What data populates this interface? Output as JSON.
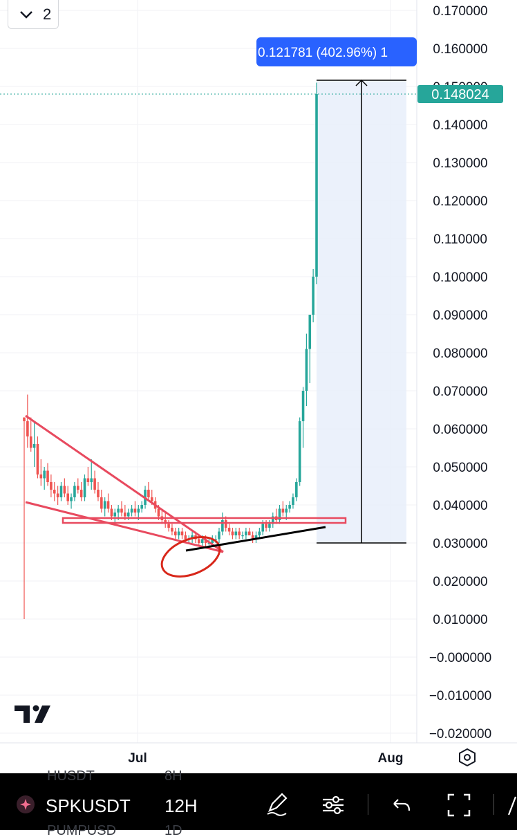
{
  "toolbar": {
    "indicator_count": "2"
  },
  "symbol_bar": {
    "symbol": "SPKUSDT",
    "interval": "12H",
    "ghost_top_left": "HUSDT",
    "ghost_top_right": "8H",
    "ghost_bottom_left": "PUMPUSD",
    "ghost_bottom_right": "1D"
  },
  "chart_data": {
    "type": "candlestick",
    "symbol": "SPKUSDT",
    "interval": "12H",
    "price_scale": {
      "ticks": [
        "0.170000",
        "0.160000",
        "0.150000",
        "0.140000",
        "0.130000",
        "0.120000",
        "0.110000",
        "0.100000",
        "0.090000",
        "0.080000",
        "0.070000",
        "0.060000",
        "0.050000",
        "0.040000",
        "0.030000",
        "0.020000",
        "0.010000",
        "−0.000000",
        "−0.010000",
        "−0.020000"
      ],
      "ylim": [
        -0.02,
        0.17
      ]
    },
    "time_scale": {
      "ticks": [
        "Jul",
        "Aug"
      ]
    },
    "last_price": "0.148024",
    "measure_label": "0.121781 (402.96%) 1",
    "up_color": "#26a69a",
    "down_color": "#ef5350",
    "candles": [
      [
        0.063,
        0.063,
        0.01,
        0.062
      ],
      [
        0.062,
        0.069,
        0.055,
        0.058
      ],
      [
        0.058,
        0.063,
        0.054,
        0.055
      ],
      [
        0.055,
        0.062,
        0.05,
        0.056
      ],
      [
        0.056,
        0.058,
        0.047,
        0.048
      ],
      [
        0.048,
        0.052,
        0.045,
        0.047
      ],
      [
        0.047,
        0.05,
        0.044,
        0.049
      ],
      [
        0.049,
        0.051,
        0.045,
        0.046
      ],
      [
        0.046,
        0.048,
        0.042,
        0.044
      ],
      [
        0.044,
        0.046,
        0.041,
        0.043
      ],
      [
        0.043,
        0.045,
        0.04,
        0.042
      ],
      [
        0.042,
        0.046,
        0.041,
        0.045
      ],
      [
        0.045,
        0.047,
        0.042,
        0.043
      ],
      [
        0.043,
        0.045,
        0.04,
        0.041
      ],
      [
        0.041,
        0.043,
        0.039,
        0.042
      ],
      [
        0.042,
        0.046,
        0.041,
        0.045
      ],
      [
        0.045,
        0.047,
        0.043,
        0.044
      ],
      [
        0.044,
        0.046,
        0.041,
        0.042
      ],
      [
        0.042,
        0.048,
        0.041,
        0.047
      ],
      [
        0.047,
        0.05,
        0.045,
        0.046
      ],
      [
        0.046,
        0.052,
        0.044,
        0.047
      ],
      [
        0.047,
        0.049,
        0.043,
        0.044
      ],
      [
        0.044,
        0.046,
        0.041,
        0.042
      ],
      [
        0.042,
        0.044,
        0.038,
        0.039
      ],
      [
        0.039,
        0.042,
        0.037,
        0.041
      ],
      [
        0.041,
        0.043,
        0.038,
        0.039
      ],
      [
        0.039,
        0.04,
        0.036,
        0.037
      ],
      [
        0.037,
        0.039,
        0.035,
        0.038
      ],
      [
        0.038,
        0.04,
        0.036,
        0.039
      ],
      [
        0.039,
        0.041,
        0.037,
        0.038
      ],
      [
        0.038,
        0.04,
        0.036,
        0.037
      ],
      [
        0.037,
        0.039,
        0.036,
        0.038
      ],
      [
        0.038,
        0.04,
        0.037,
        0.039
      ],
      [
        0.039,
        0.041,
        0.037,
        0.038
      ],
      [
        0.038,
        0.04,
        0.036,
        0.039
      ],
      [
        0.039,
        0.041,
        0.038,
        0.04
      ],
      [
        0.04,
        0.045,
        0.039,
        0.044
      ],
      [
        0.044,
        0.046,
        0.041,
        0.042
      ],
      [
        0.042,
        0.044,
        0.04,
        0.041
      ],
      [
        0.041,
        0.042,
        0.038,
        0.039
      ],
      [
        0.039,
        0.04,
        0.036,
        0.037
      ],
      [
        0.037,
        0.039,
        0.035,
        0.036
      ],
      [
        0.036,
        0.038,
        0.034,
        0.035
      ],
      [
        0.035,
        0.036,
        0.033,
        0.034
      ],
      [
        0.034,
        0.035,
        0.032,
        0.033
      ],
      [
        0.033,
        0.034,
        0.031,
        0.032
      ],
      [
        0.032,
        0.034,
        0.031,
        0.033
      ],
      [
        0.033,
        0.034,
        0.031,
        0.032
      ],
      [
        0.032,
        0.033,
        0.03,
        0.031
      ],
      [
        0.031,
        0.032,
        0.03,
        0.031
      ],
      [
        0.031,
        0.033,
        0.03,
        0.032
      ],
      [
        0.032,
        0.033,
        0.03,
        0.031
      ],
      [
        0.031,
        0.032,
        0.029,
        0.03
      ],
      [
        0.03,
        0.032,
        0.029,
        0.031
      ],
      [
        0.031,
        0.032,
        0.029,
        0.03
      ],
      [
        0.03,
        0.031,
        0.029,
        0.03
      ],
      [
        0.03,
        0.032,
        0.029,
        0.031
      ],
      [
        0.031,
        0.032,
        0.03,
        0.031
      ],
      [
        0.031,
        0.034,
        0.03,
        0.033
      ],
      [
        0.033,
        0.038,
        0.032,
        0.036
      ],
      [
        0.036,
        0.037,
        0.033,
        0.034
      ],
      [
        0.034,
        0.035,
        0.032,
        0.033
      ],
      [
        0.033,
        0.034,
        0.031,
        0.032
      ],
      [
        0.032,
        0.034,
        0.031,
        0.033
      ],
      [
        0.033,
        0.034,
        0.031,
        0.032
      ],
      [
        0.032,
        0.033,
        0.031,
        0.032
      ],
      [
        0.032,
        0.034,
        0.031,
        0.033
      ],
      [
        0.033,
        0.034,
        0.032,
        0.032
      ],
      [
        0.032,
        0.033,
        0.03,
        0.031
      ],
      [
        0.031,
        0.033,
        0.03,
        0.032
      ],
      [
        0.032,
        0.034,
        0.031,
        0.033
      ],
      [
        0.033,
        0.036,
        0.032,
        0.035
      ],
      [
        0.035,
        0.036,
        0.033,
        0.034
      ],
      [
        0.034,
        0.036,
        0.033,
        0.035
      ],
      [
        0.035,
        0.038,
        0.034,
        0.037
      ],
      [
        0.037,
        0.039,
        0.035,
        0.036
      ],
      [
        0.036,
        0.04,
        0.035,
        0.039
      ],
      [
        0.039,
        0.041,
        0.037,
        0.038
      ],
      [
        0.038,
        0.04,
        0.036,
        0.039
      ],
      [
        0.039,
        0.041,
        0.038,
        0.04
      ],
      [
        0.04,
        0.043,
        0.039,
        0.042
      ],
      [
        0.042,
        0.047,
        0.041,
        0.046
      ],
      [
        0.046,
        0.063,
        0.045,
        0.062
      ],
      [
        0.062,
        0.071,
        0.055,
        0.07
      ],
      [
        0.07,
        0.085,
        0.066,
        0.081
      ],
      [
        0.081,
        0.09,
        0.072,
        0.09
      ],
      [
        0.09,
        0.102,
        0.088,
        0.1
      ],
      [
        0.1,
        0.151,
        0.098,
        0.148
      ]
    ],
    "drawings": [
      {
        "type": "triangle",
        "color": "#e84a5f"
      },
      {
        "type": "horizontal_zone",
        "color": "#e84a5f"
      },
      {
        "type": "ellipse",
        "color": "#d8271a"
      },
      {
        "type": "trend_line",
        "color": "#000000"
      },
      {
        "type": "price_range",
        "from": 0.03,
        "to": 0.151,
        "fill": "#e8eefa"
      }
    ]
  }
}
